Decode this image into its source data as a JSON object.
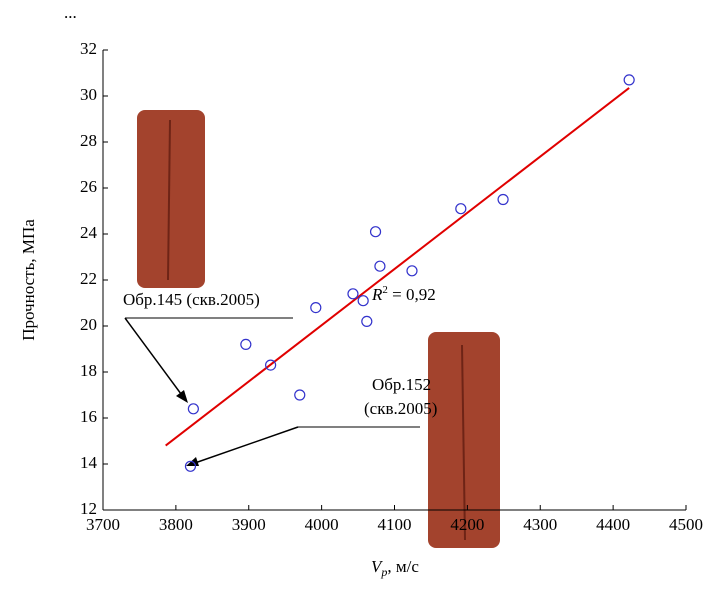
{
  "chart_data": {
    "type": "scatter",
    "corner_text": "...",
    "y_label": "Прочность, МПа",
    "x_label": {
      "symbol": "V",
      "subscript": "p",
      "unit": ", м/с"
    },
    "xlim": [
      3700,
      4500
    ],
    "xticks": [
      3700,
      3800,
      3900,
      4000,
      4100,
      4200,
      4300,
      4400,
      4500
    ],
    "ylim": [
      12,
      32
    ],
    "yticks": [
      12,
      14,
      16,
      18,
      20,
      22,
      24,
      26,
      28,
      30,
      32
    ],
    "series": [
      {
        "type": "scatter",
        "color": "#3333cc",
        "x": [
          3820,
          3824,
          3896,
          3930,
          3970,
          3992,
          4043,
          4057,
          4062,
          4074,
          4080,
          4124,
          4191,
          4249,
          4422
        ],
        "values": [
          13.9,
          16.4,
          19.2,
          18.3,
          17.0,
          20.8,
          21.4,
          21.1,
          20.2,
          24.1,
          22.6,
          22.4,
          25.1,
          25.5,
          30.7
        ]
      },
      {
        "type": "line",
        "color": "#e00000",
        "x": [
          3786,
          4422
        ],
        "values": [
          14.8,
          30.35
        ]
      }
    ],
    "annotations": {
      "r2": {
        "symbol": "R",
        "superscript": "2",
        "text": " = 0,92"
      },
      "sample145": "Обр.145 (скв.2005)",
      "sample152_line1": "Обр.152",
      "sample152_line2": "(скв.2005)"
    }
  }
}
